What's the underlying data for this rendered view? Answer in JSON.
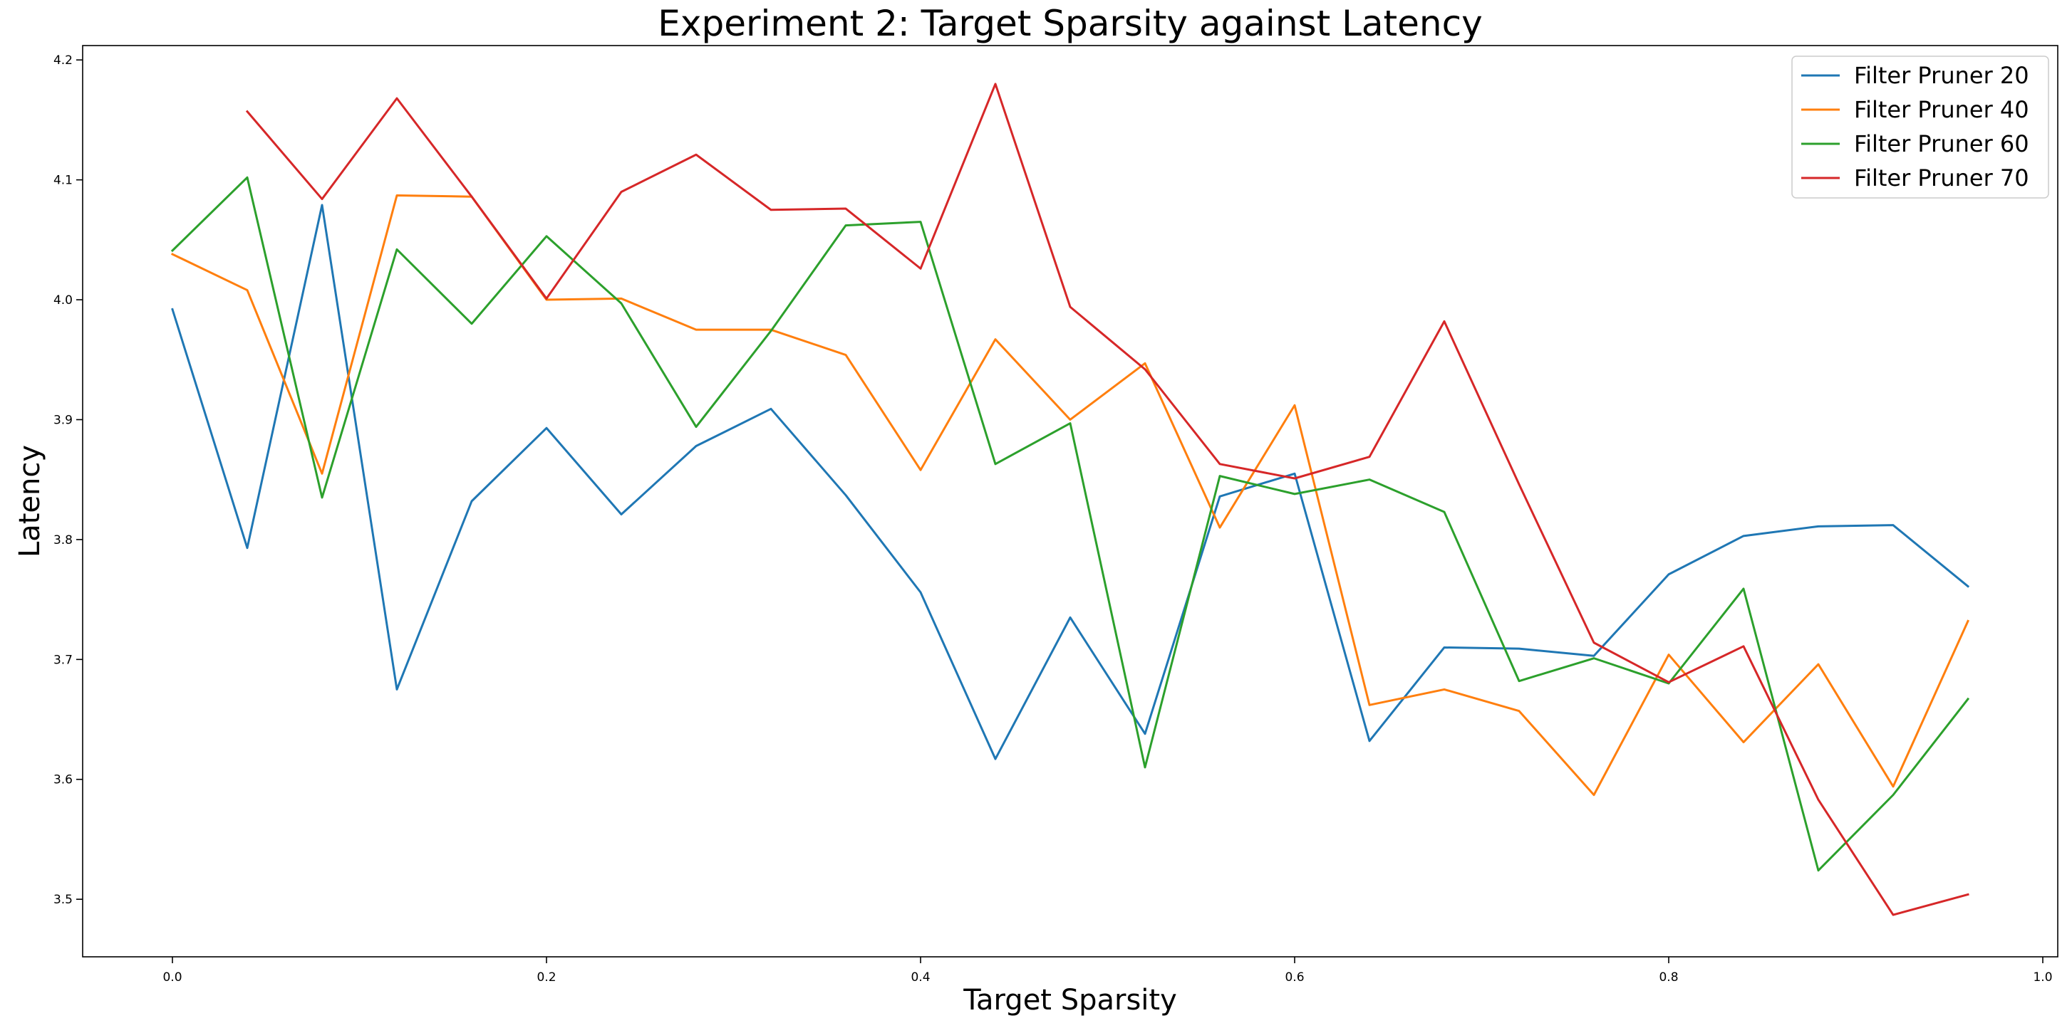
{
  "chart_data": {
    "type": "line",
    "title": "Experiment 2: Target Sparsity against Latency",
    "xlabel": "Target Sparsity",
    "ylabel": "Latency",
    "xlim": [
      -0.048,
      1.008
    ],
    "ylim": [
      3.452,
      4.212
    ],
    "xticks": [
      0.0,
      0.2,
      0.4,
      0.6,
      0.8,
      1.0
    ],
    "xtick_labels": [
      "0.0",
      "0.2",
      "0.4",
      "0.6",
      "0.8",
      "1.0"
    ],
    "yticks": [
      3.5,
      3.6,
      3.7,
      3.8,
      3.9,
      4.0,
      4.1,
      4.2
    ],
    "ytick_labels": [
      "3.5",
      "3.6",
      "3.7",
      "3.8",
      "3.9",
      "4.0",
      "4.1",
      "4.2"
    ],
    "grid": false,
    "legend_position": "top-right",
    "series": [
      {
        "name": "Filter Pruner 20",
        "color": "#1f77b4",
        "x": [
          0.0,
          0.04,
          0.08,
          0.12,
          0.16,
          0.2,
          0.24,
          0.28,
          0.32,
          0.36,
          0.4,
          0.44,
          0.48,
          0.52,
          0.56,
          0.6,
          0.64,
          0.68,
          0.72,
          0.76,
          0.8,
          0.84,
          0.88,
          0.92,
          0.96
        ],
        "y": [
          3.992,
          3.793,
          4.079,
          3.675,
          3.832,
          3.893,
          3.821,
          3.878,
          3.909,
          3.837,
          3.756,
          3.617,
          3.735,
          3.638,
          3.836,
          3.855,
          3.632,
          3.71,
          3.709,
          3.703,
          3.771,
          3.803,
          3.811,
          3.812,
          3.761
        ]
      },
      {
        "name": "Filter Pruner 40",
        "color": "#ff7f0e",
        "x": [
          0.0,
          0.04,
          0.08,
          0.12,
          0.16,
          0.2,
          0.24,
          0.28,
          0.32,
          0.36,
          0.4,
          0.44,
          0.48,
          0.52,
          0.56,
          0.6,
          0.64,
          0.68,
          0.72,
          0.76,
          0.8,
          0.84,
          0.88,
          0.92,
          0.96
        ],
        "y": [
          4.038,
          4.008,
          3.855,
          4.087,
          4.086,
          4.0,
          4.001,
          3.975,
          3.975,
          3.954,
          3.858,
          3.967,
          3.9,
          3.947,
          3.81,
          3.912,
          3.662,
          3.675,
          3.657,
          3.587,
          3.704,
          3.631,
          3.696,
          3.594,
          3.732
        ]
      },
      {
        "name": "Filter Pruner 60",
        "color": "#2ca02c",
        "x": [
          0.0,
          0.04,
          0.08,
          0.12,
          0.16,
          0.2,
          0.24,
          0.28,
          0.32,
          0.36,
          0.4,
          0.44,
          0.48,
          0.52,
          0.56,
          0.6,
          0.64,
          0.68,
          0.72,
          0.76,
          0.8,
          0.84,
          0.88,
          0.92,
          0.96
        ],
        "y": [
          4.041,
          4.102,
          3.835,
          4.042,
          3.98,
          4.053,
          3.997,
          3.894,
          3.974,
          4.062,
          4.065,
          3.863,
          3.897,
          3.61,
          3.853,
          3.838,
          3.85,
          3.823,
          3.682,
          3.701,
          3.68,
          3.759,
          3.524,
          3.587,
          3.667
        ]
      },
      {
        "name": "Filter Pruner 70",
        "color": "#d62728",
        "x": [
          0.04,
          0.08,
          0.12,
          0.16,
          0.2,
          0.24,
          0.28,
          0.32,
          0.36,
          0.4,
          0.44,
          0.48,
          0.52,
          0.56,
          0.6,
          0.64,
          0.68,
          0.72,
          0.76,
          0.8,
          0.84,
          0.88,
          0.92,
          0.96
        ],
        "y": [
          4.157,
          4.084,
          4.168,
          4.086,
          4.001,
          4.09,
          4.121,
          4.075,
          4.076,
          4.026,
          4.18,
          3.994,
          3.942,
          3.863,
          3.851,
          3.869,
          3.982,
          3.846,
          3.714,
          3.681,
          3.711,
          3.583,
          3.487,
          3.504
        ]
      }
    ]
  }
}
